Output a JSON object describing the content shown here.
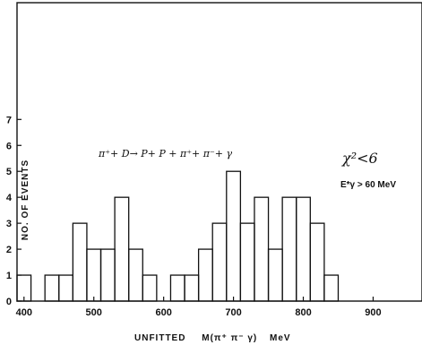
{
  "chart_data": {
    "type": "bar",
    "title": "",
    "xlabel_prefix": "UNFITTED",
    "xlabel_expr": "M(π⁺ π⁻ γ)",
    "xlabel_unit": "MeV",
    "ylabel": "NO. OF EVENTS",
    "xlim": [
      390,
      970
    ],
    "ylim": [
      0,
      11.5
    ],
    "x_ticks": [
      400,
      500,
      600,
      700,
      800,
      900
    ],
    "y_ticks": [
      0,
      1,
      2,
      3,
      4,
      5,
      6,
      7
    ],
    "bin_width": 20,
    "bins": [
      {
        "x0": 390,
        "x1": 410,
        "count": 1
      },
      {
        "x0": 410,
        "x1": 430,
        "count": 0
      },
      {
        "x0": 430,
        "x1": 450,
        "count": 1
      },
      {
        "x0": 450,
        "x1": 470,
        "count": 1
      },
      {
        "x0": 470,
        "x1": 490,
        "count": 3
      },
      {
        "x0": 490,
        "x1": 510,
        "count": 2
      },
      {
        "x0": 510,
        "x1": 530,
        "count": 2
      },
      {
        "x0": 530,
        "x1": 550,
        "count": 4
      },
      {
        "x0": 550,
        "x1": 570,
        "count": 2
      },
      {
        "x0": 570,
        "x1": 590,
        "count": 1
      },
      {
        "x0": 590,
        "x1": 610,
        "count": 0
      },
      {
        "x0": 610,
        "x1": 630,
        "count": 1
      },
      {
        "x0": 630,
        "x1": 650,
        "count": 1
      },
      {
        "x0": 650,
        "x1": 670,
        "count": 2
      },
      {
        "x0": 670,
        "x1": 690,
        "count": 3
      },
      {
        "x0": 690,
        "x1": 710,
        "count": 5
      },
      {
        "x0": 710,
        "x1": 730,
        "count": 3
      },
      {
        "x0": 730,
        "x1": 750,
        "count": 4
      },
      {
        "x0": 750,
        "x1": 770,
        "count": 2
      },
      {
        "x0": 770,
        "x1": 790,
        "count": 4
      },
      {
        "x0": 790,
        "x1": 810,
        "count": 4
      },
      {
        "x0": 810,
        "x1": 830,
        "count": 3
      },
      {
        "x0": 830,
        "x1": 850,
        "count": 1
      },
      {
        "x0": 850,
        "x1": 870,
        "count": 0
      }
    ],
    "annotations": {
      "reaction": "π⁺+ D→ P+ P + π⁺+ π⁻+ γ",
      "chi_cut": "χ²<6",
      "energy_cut": "E*γ > 60 MeV"
    },
    "colors": {
      "line": "#111111",
      "background": "#ffffff"
    }
  }
}
